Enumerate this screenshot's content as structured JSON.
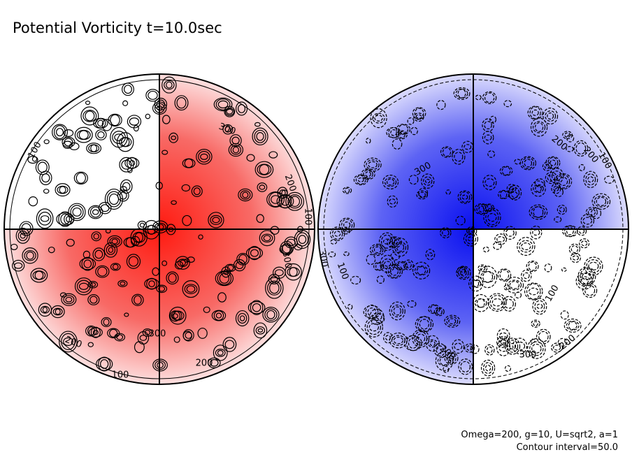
{
  "title": "Potential Vorticity t=10.0sec",
  "notes": [
    "Omega=200, g=10, U=sqrt2, a=1",
    "Contour interval=50.0"
  ],
  "contour_labels": [
    "100",
    "300",
    "200",
    "100",
    "300",
    "300",
    "200",
    "200",
    "100",
    "100",
    "200",
    "300",
    "300",
    "100",
    "200",
    "300",
    "200",
    "100",
    "200"
  ]
}
